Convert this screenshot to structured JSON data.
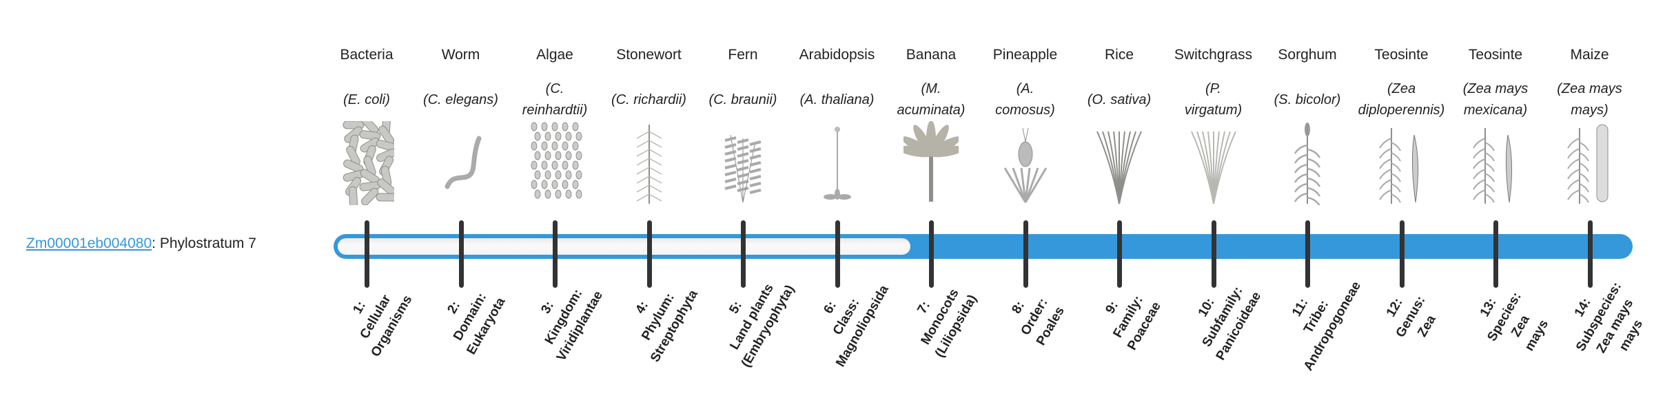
{
  "gene": {
    "id": "Zm00001eb004080",
    "separator": ":",
    "stratum_text": " Phylostratum 7"
  },
  "colors": {
    "accent": "#3598db",
    "tick": "#333333",
    "empty": "#f5f5f5"
  },
  "progress": {
    "phylostratum": 7,
    "total": 14
  },
  "organisms": [
    {
      "name": "Bacteria",
      "species": [
        "(E. coli)"
      ],
      "icon": "bacteria-icon"
    },
    {
      "name": "Worm",
      "species": [
        "(C. elegans)"
      ],
      "icon": "worm-icon"
    },
    {
      "name": "Algae",
      "species": [
        "(C.",
        "reinhardtii)"
      ],
      "icon": "algae-icon"
    },
    {
      "name": "Stonewort",
      "species": [
        "(C. richardii)"
      ],
      "icon": "stonewort-icon"
    },
    {
      "name": "Fern",
      "species": [
        "(C. braunii)"
      ],
      "icon": "fern-icon"
    },
    {
      "name": "Arabidopsis",
      "species": [
        "(A. thaliana)"
      ],
      "icon": "arabidopsis-icon"
    },
    {
      "name": "Banana",
      "species": [
        "(M.",
        "acuminata)"
      ],
      "icon": "banana-icon"
    },
    {
      "name": "Pineapple",
      "species": [
        "(A.",
        "comosus)"
      ],
      "icon": "pineapple-icon"
    },
    {
      "name": "Rice",
      "species": [
        "(O. sativa)"
      ],
      "icon": "rice-icon"
    },
    {
      "name": "Switchgrass",
      "species": [
        "(P.",
        "virgatum)"
      ],
      "icon": "switchgrass-icon"
    },
    {
      "name": "Sorghum",
      "species": [
        "(S. bicolor)"
      ],
      "icon": "sorghum-icon"
    },
    {
      "name": "Teosinte",
      "species": [
        "(Zea",
        "diploperennis)"
      ],
      "icon": "teosinte-icon"
    },
    {
      "name": "Teosinte",
      "species": [
        "(Zea mays",
        "mexicana)"
      ],
      "icon": "teosinte-icon"
    },
    {
      "name": "Maize",
      "species": [
        "(Zea mays",
        "mays)"
      ],
      "icon": "maize-icon"
    }
  ],
  "strata": [
    [
      "1:",
      "Cellular",
      "Organisms"
    ],
    [
      "2:",
      "Domain:",
      "Eukaryota"
    ],
    [
      "3:",
      "Kingdom:",
      "Viridiplantae"
    ],
    [
      "4:",
      "Phylum:",
      "Streptophyta"
    ],
    [
      "5:",
      "Land plants",
      "(Embryophyta)"
    ],
    [
      "6:",
      "Class:",
      "Magnoliopsida"
    ],
    [
      "7:",
      "Monocots",
      "(Liliopsida)"
    ],
    [
      "8:",
      "Order:",
      "Poales"
    ],
    [
      "9:",
      "Family:",
      "Poaceae"
    ],
    [
      "10:",
      "Subfamily:",
      "Panicoideae"
    ],
    [
      "11:",
      "Tribe:",
      "Andropogoneae"
    ],
    [
      "12:",
      "Genus:",
      "Zea"
    ],
    [
      "13:",
      "Species:",
      "Zea",
      "mays"
    ],
    [
      "14:",
      "Subspecies:",
      "Zea mays",
      "mays"
    ]
  ]
}
